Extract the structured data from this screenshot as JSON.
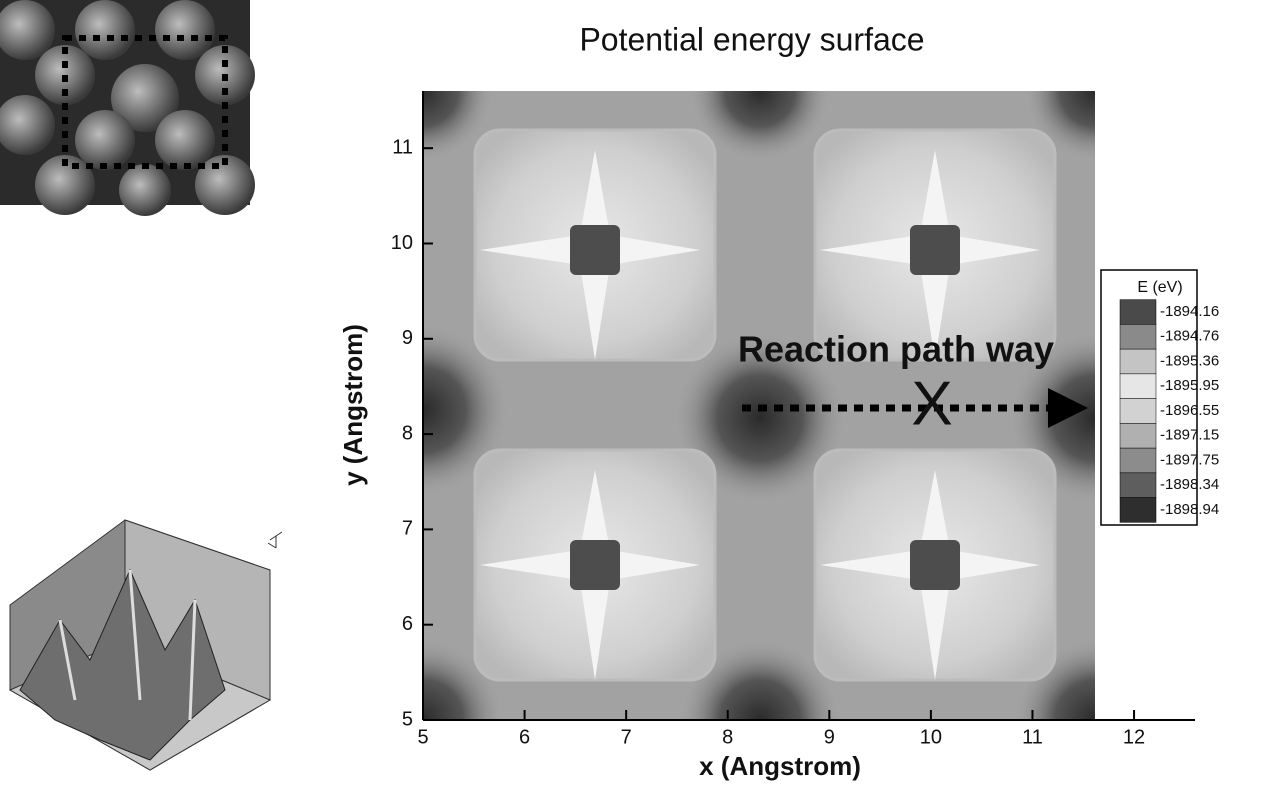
{
  "chart_data": {
    "type": "contour",
    "title": "Potential energy surface",
    "x_label": "x (Angstrom)",
    "y_label": "y (Angstrom)",
    "xlim": [
      5,
      12.6
    ],
    "xticks": [
      5,
      6,
      7,
      8,
      9,
      10,
      11,
      12
    ],
    "ylim": [
      5,
      11.6
    ],
    "yticks": [
      5,
      6,
      7,
      8,
      9,
      10,
      11
    ],
    "colorbar": {
      "title": "E (eV)",
      "levels": [
        -1894.16,
        -1894.76,
        -1895.36,
        -1895.95,
        -1896.55,
        -1897.15,
        -1897.75,
        -1898.34,
        -1898.94
      ],
      "colors": [
        "#4a4a4a",
        "#8a8a8a",
        "#c4c4c4",
        "#e6e6e6",
        "#d2d2d2",
        "#b0b0b0",
        "#8c8c8c",
        "#5e5e5e",
        "#2e2e2e"
      ]
    },
    "annotations": [
      "Reaction path way",
      "X"
    ]
  }
}
